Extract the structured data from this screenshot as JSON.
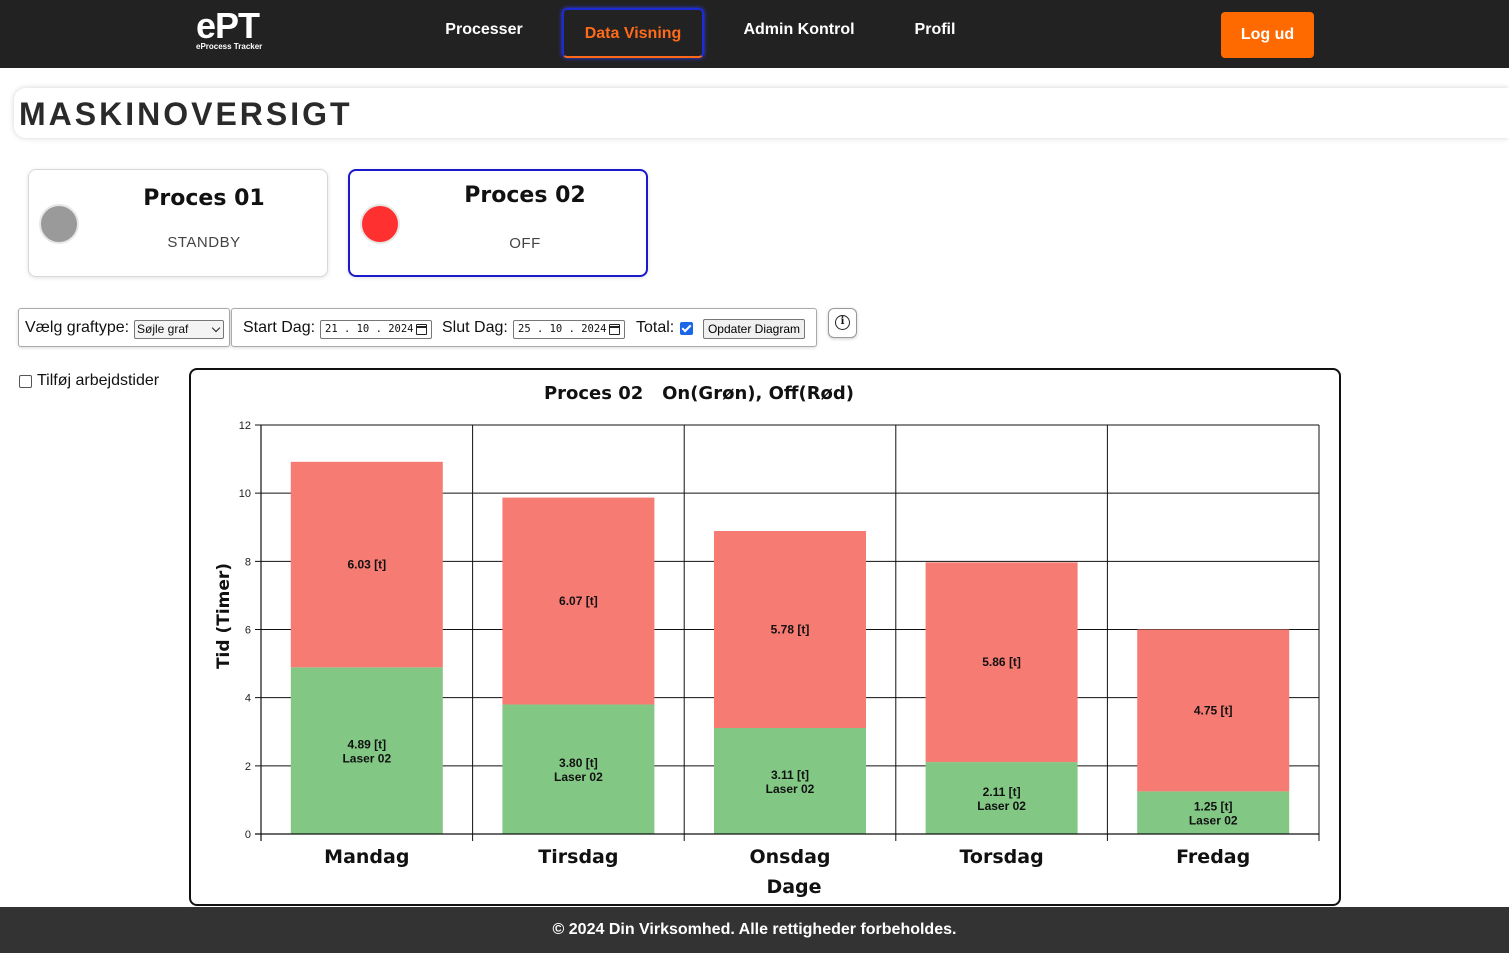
{
  "nav": {
    "logo_main": "ePT",
    "logo_sub": "eProcess Tracker",
    "links": [
      {
        "label": "Processer"
      },
      {
        "label": "Data Visning"
      },
      {
        "label": "Admin Kontrol"
      },
      {
        "label": "Profil"
      }
    ],
    "logout_label": "Log ud",
    "accent_color": "#ff6a00"
  },
  "page_title": "MASKINOVERSIGT",
  "processes": [
    {
      "name": "Proces 01",
      "status": "STANDBY",
      "status_color": "#9a9a9a"
    },
    {
      "name": "Proces 02",
      "status": "OFF",
      "status_color": "#ff3030"
    }
  ],
  "controls": {
    "graph_type_label": "Vælg graftype:",
    "graph_type_value": "Søjle graf",
    "start_label": "Start Dag:",
    "start_value": "21 . 10 . 2024",
    "end_label": "Slut Dag:",
    "end_value": "25 . 10 . 2024",
    "total_label": "Total:",
    "total_checked": true,
    "update_label": "Opdater Diagram",
    "info_icon": "i",
    "worktime_label": "Tilføj arbejdstider",
    "worktime_checked": false
  },
  "chart_data": {
    "type": "bar",
    "stacked": true,
    "title": "Proces 02   On(Grøn), Off(Rød)",
    "xlabel": "Dage",
    "ylabel": "Tid (Timer)",
    "ylim": [
      0,
      12
    ],
    "yticks": [
      0,
      2,
      4,
      6,
      8,
      10,
      12
    ],
    "grid": true,
    "categories": [
      "Mandag",
      "Tirsdag",
      "Onsdag",
      "Torsdag",
      "Fredag"
    ],
    "series": [
      {
        "values": [
          4.89,
          3.8,
          3.11,
          2.11,
          1.25
        ],
        "color": "#82c884",
        "labels": [
          "4.89 [t]",
          "3.80 [t]",
          "3.11 [t]",
          "2.11 [t]",
          "1.25 [t]"
        ],
        "sublabel": "Laser 02"
      },
      {
        "values": [
          6.03,
          6.07,
          5.78,
          5.86,
          4.75
        ],
        "color": "#f67b73",
        "labels": [
          "6.03 [t]",
          "6.07 [t]",
          "5.78 [t]",
          "5.86 [t]",
          "4.75 [t]"
        ]
      }
    ]
  },
  "footer": "© 2024 Din Virksomhed. Alle rettigheder forbeholdes."
}
